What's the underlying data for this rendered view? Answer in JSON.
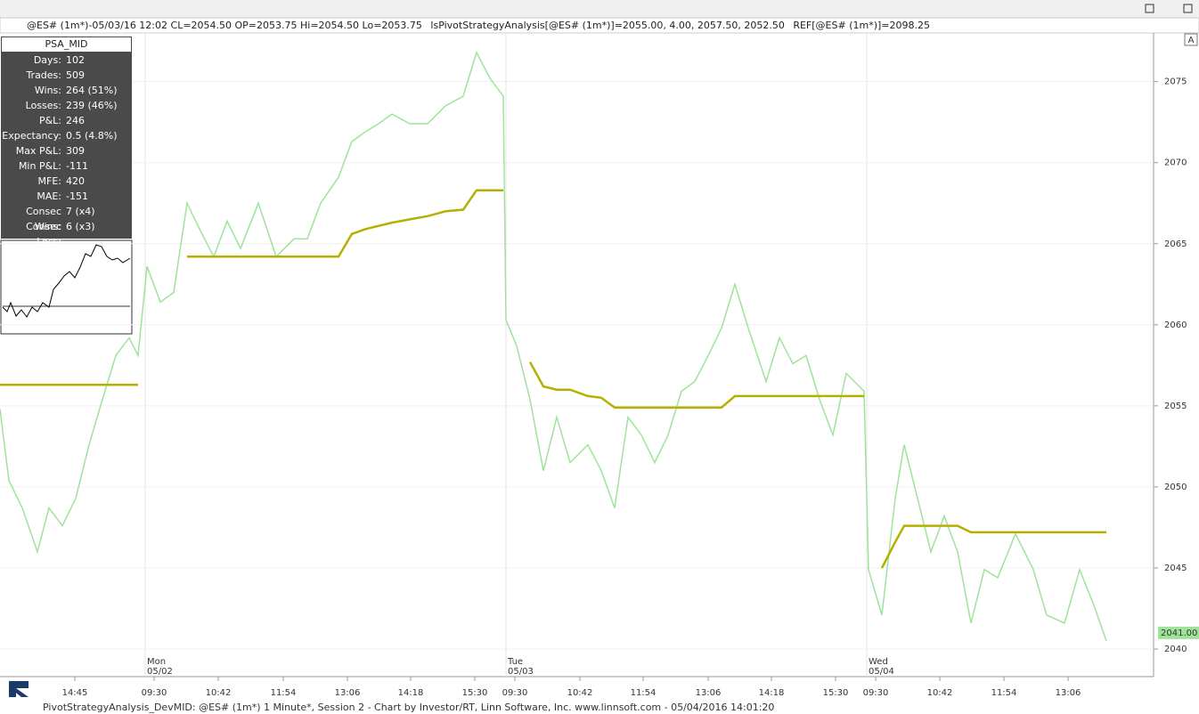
{
  "header": {
    "quote": "@ES# (1m*)-05/03/16 12:02 CL=2054.50 OP=2053.75 Hi=2054.50 Lo=2053.75",
    "indicator": "lsPivotStrategyAnalysis[@ES# (1m*)]=2055.00, 4.00, 2057.50, 2052.50",
    "ref": "REF[@ES# (1m*)]=2098.25",
    "button": "A"
  },
  "stats": {
    "title": "PSA_MID",
    "rows": [
      [
        "Days:",
        "102"
      ],
      [
        "Trades:",
        "509"
      ],
      [
        "Wins:",
        "264 (51%)"
      ],
      [
        "Losses:",
        "239 (46%)"
      ],
      [
        "P&L:",
        "246"
      ],
      [
        "Expectancy:",
        "0.5 (4.8%)"
      ],
      [
        "Max P&L:",
        "309"
      ],
      [
        "Min P&L:",
        "-111"
      ],
      [
        "MFE:",
        "420"
      ],
      [
        "MAE:",
        "-151"
      ],
      [
        "Consec Wins:",
        "7 (x4)"
      ],
      [
        "Consec Loss:",
        "6 (x3)"
      ]
    ]
  },
  "footer": "PivotStrategyAnalysis_DevMID: @ES# (1m*) 1 Minute*, Session 2 - Chart by Investor/RT, Linn Software, Inc. www.linnsoft.com - 05/04/2016 14:01:20",
  "chart_data": {
    "type": "line",
    "x": [
      0,
      10,
      25,
      42,
      55,
      70,
      85,
      100,
      115,
      130,
      145,
      155,
      165,
      180,
      195,
      210,
      225,
      240,
      255,
      270,
      290,
      310,
      330,
      345,
      360,
      380,
      395,
      410,
      425,
      440,
      460,
      480,
      500,
      520,
      535,
      550,
      565,
      568,
      580,
      595,
      610,
      625,
      640,
      660,
      675,
      690,
      705,
      720,
      735,
      750,
      765,
      780,
      795,
      810,
      825,
      840,
      860,
      875,
      890,
      905,
      920,
      935,
      950,
      970,
      975,
      990,
      1005,
      1015,
      1030,
      1045,
      1060,
      1075,
      1090,
      1105,
      1120,
      1140,
      1160,
      1175,
      1195,
      1212,
      1228,
      1242
    ],
    "series": [
      {
        "color": "#9fe39a",
        "values": [
          2054.8,
          2050.4,
          2048.7,
          2046.0,
          2048.7,
          2047.6,
          2049.3,
          2052.6,
          2055.4,
          2058.1,
          2059.2,
          2058.1,
          2063.6,
          2061.4,
          2062.0,
          2067.5,
          2065.8,
          2064.2,
          2066.4,
          2064.7,
          2067.5,
          2064.2,
          2065.3,
          2065.3,
          2067.5,
          2069.1,
          2071.3,
          2071.9,
          2072.4,
          2073.0,
          2072.4,
          2072.4,
          2073.5,
          2074.1,
          2076.8,
          2075.2,
          2074.1,
          2060.3,
          2058.7,
          2055.4,
          2051.0,
          2054.3,
          2051.5,
          2052.6,
          2051.0,
          2048.7,
          2054.3,
          2053.2,
          2051.5,
          2053.2,
          2055.9,
          2056.5,
          2058.1,
          2059.8,
          2062.5,
          2059.8,
          2056.5,
          2059.2,
          2057.6,
          2058.1,
          2055.4,
          2053.2,
          2057.0,
          2055.9,
          2044.9,
          2042.1,
          2049.3,
          2052.6,
          2049.3,
          2046.0,
          2048.2,
          2046.0,
          2041.6,
          2044.9,
          2044.4,
          2047.1,
          2044.9,
          2042.1,
          2041.6,
          2044.9,
          2042.7,
          2040.5
        ]
      },
      {
        "color": "#b5b000",
        "values": [
          2056.3,
          2056.3,
          2056.3,
          2056.3,
          2056.3,
          2056.3,
          2056.3,
          2056.3,
          2056.3,
          2056.3,
          2056.3,
          2056.3,
          null,
          null,
          null,
          2064.2,
          2064.2,
          2064.2,
          2064.2,
          2064.2,
          2064.2,
          2064.2,
          2064.2,
          2064.2,
          2064.2,
          2064.2,
          2065.6,
          2065.9,
          2066.1,
          2066.3,
          2066.5,
          2066.7,
          2067.0,
          2067.1,
          2068.3,
          2068.3,
          2068.3,
          null,
          null,
          2057.7,
          2056.2,
          2056.0,
          2056.0,
          2055.6,
          2055.5,
          2054.9,
          2054.9,
          2054.9,
          2054.9,
          2054.9,
          2054.9,
          2054.9,
          2054.9,
          2054.9,
          2055.6,
          2055.6,
          2055.6,
          2055.6,
          2055.6,
          2055.6,
          2055.6,
          2055.6,
          2055.6,
          2055.6,
          null,
          2045.0,
          2046.6,
          2047.6,
          2047.6,
          2047.6,
          2047.6,
          2047.6,
          2047.2,
          2047.2,
          2047.2,
          2047.2,
          2047.2,
          2047.2,
          2047.2,
          2047.2,
          2047.2,
          2047.2
        ]
      }
    ],
    "xlim": [
      0,
      1295
    ],
    "xticks": [
      {
        "value": 84,
        "label": "14:45"
      },
      {
        "value": 173,
        "label": "09:30"
      },
      {
        "value": 245,
        "label": "10:42"
      },
      {
        "value": 318,
        "label": "11:54"
      },
      {
        "value": 390,
        "label": "13:06"
      },
      {
        "value": 461,
        "label": "14:18"
      },
      {
        "value": 533,
        "label": "15:30"
      },
      {
        "value": 578,
        "label": "09:30"
      },
      {
        "value": 651,
        "label": "10:42"
      },
      {
        "value": 722,
        "label": "11:54"
      },
      {
        "value": 795,
        "label": "13:06"
      },
      {
        "value": 866,
        "label": "14:18"
      },
      {
        "value": 938,
        "label": "15:30"
      },
      {
        "value": 983,
        "label": "09:30"
      },
      {
        "value": 1055,
        "label": "10:42"
      },
      {
        "value": 1127,
        "label": "11:54"
      },
      {
        "value": 1199,
        "label": "13:06"
      }
    ],
    "sessions": [
      {
        "x": 163,
        "day": "Mon",
        "date": "05/02"
      },
      {
        "x": 568,
        "day": "Tue",
        "date": "05/03"
      },
      {
        "x": 973,
        "day": "Wed",
        "date": "05/04"
      }
    ],
    "ylim": [
      2038.3,
      2078.0
    ],
    "yticks": [
      2040,
      2045,
      2050,
      2055,
      2060,
      2065,
      2070,
      2075
    ],
    "last_price": {
      "value": 2041,
      "label": "2041.00"
    },
    "grid": true
  }
}
